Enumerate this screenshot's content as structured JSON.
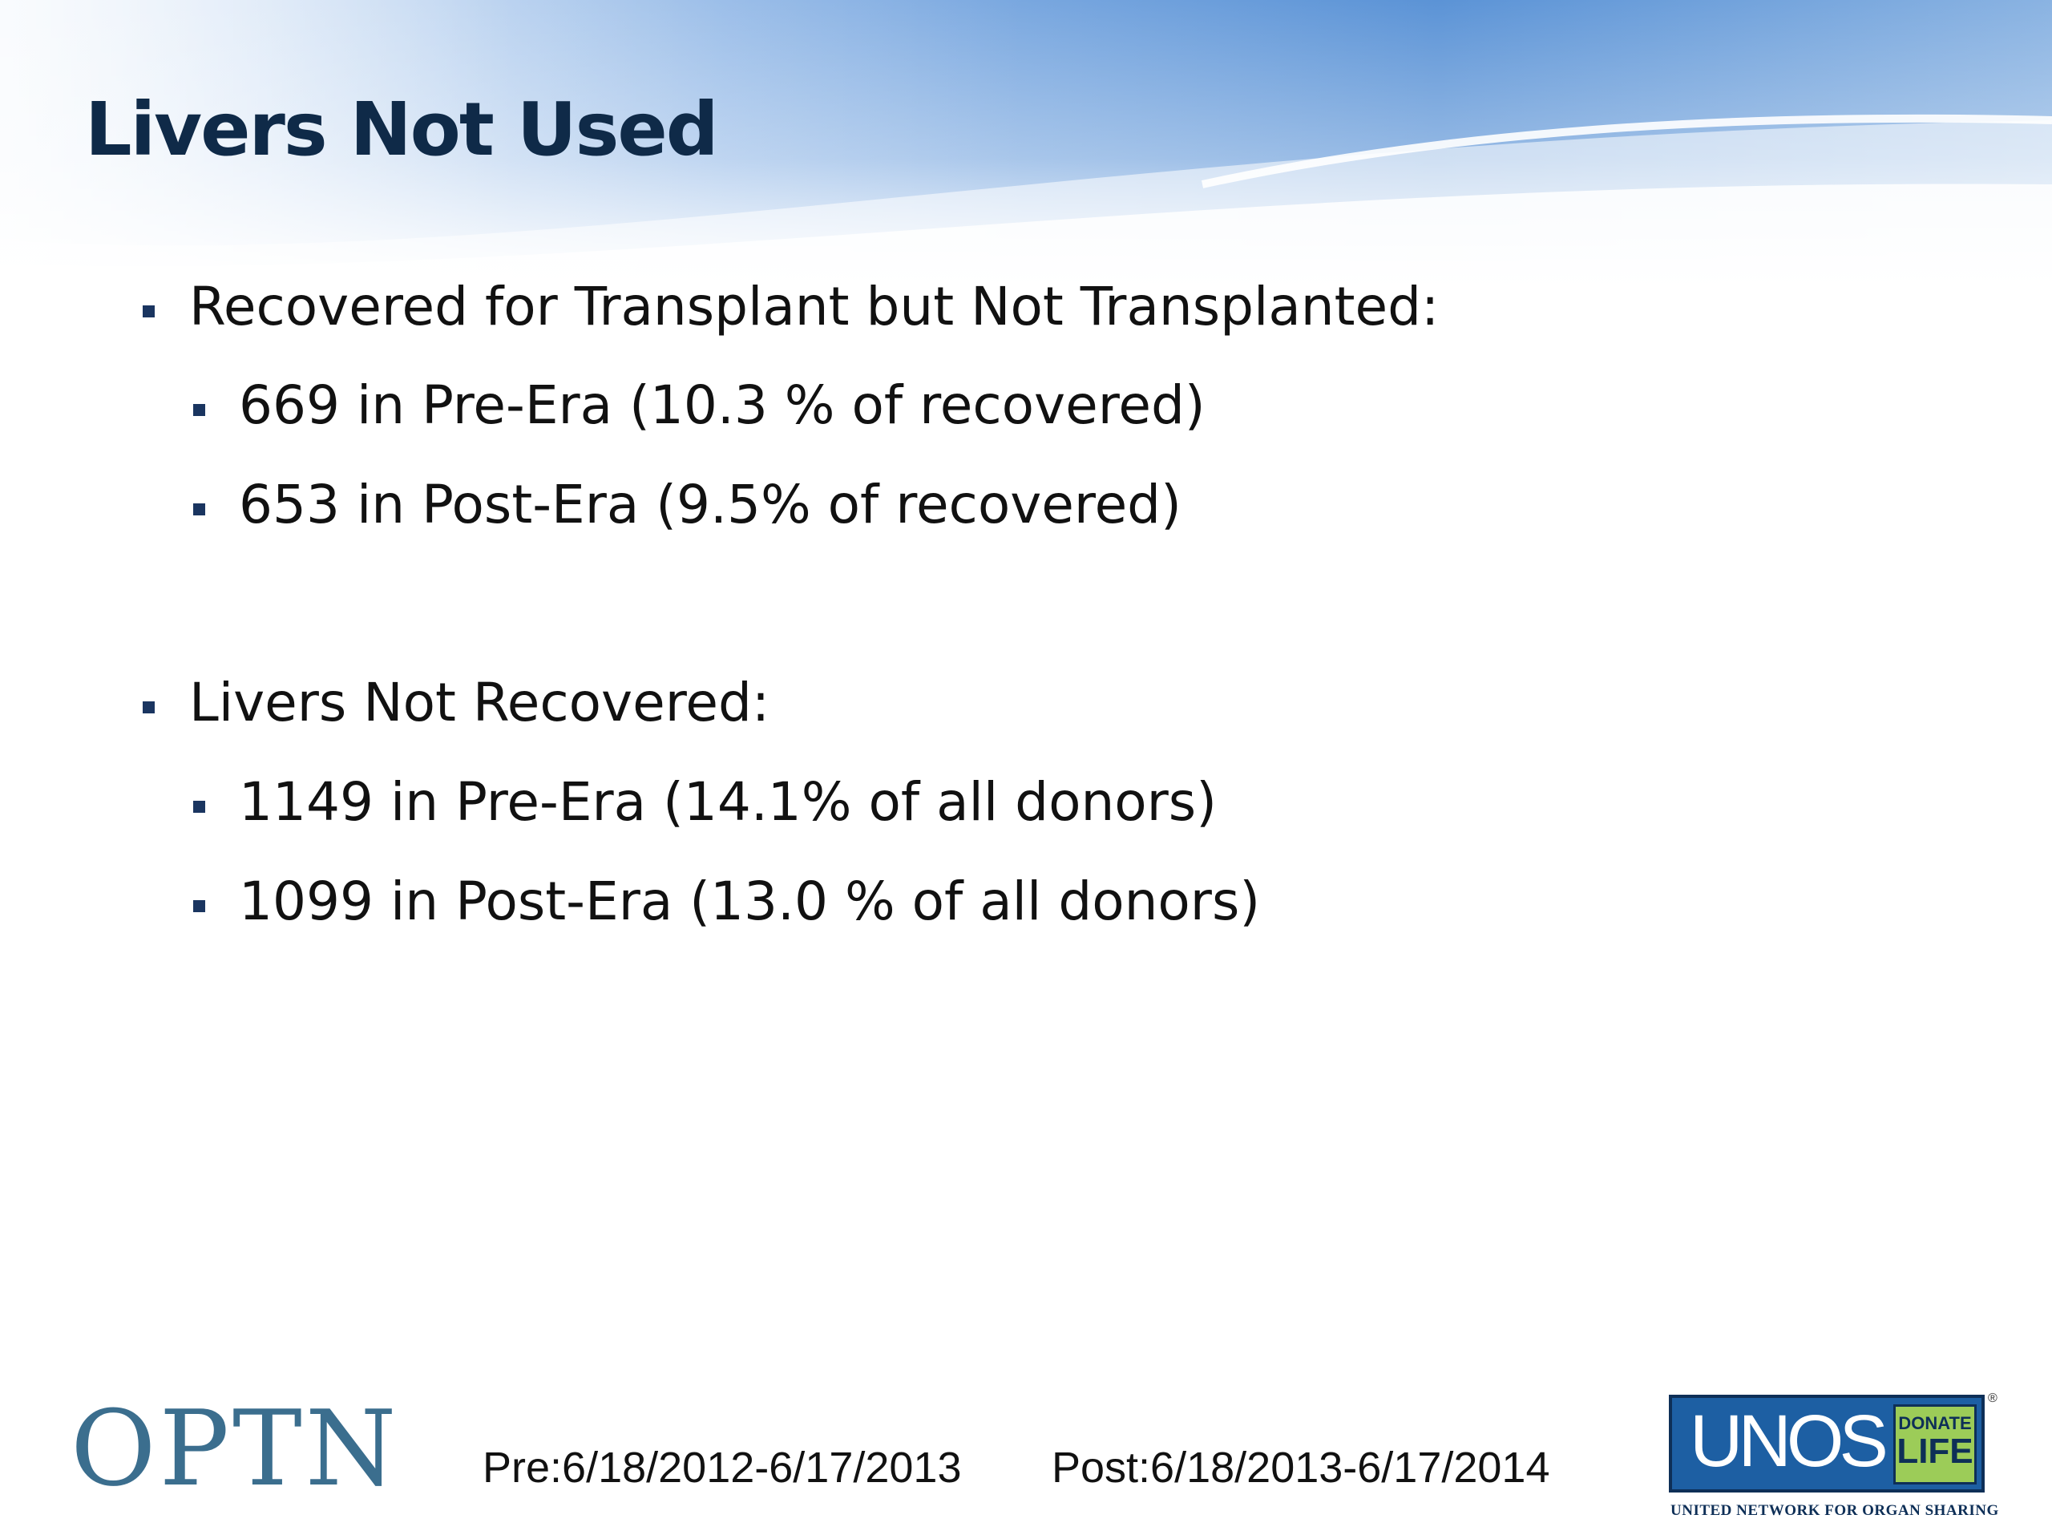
{
  "slide": {
    "title": "Livers Not Used",
    "bullets": [
      {
        "text": "Recovered for Transplant but Not Transplanted:",
        "sub": [
          "669 in Pre-Era (10.3 % of recovered)",
          "653 in Post-Era (9.5% of recovered)"
        ]
      },
      {
        "text": "Livers Not Recovered:",
        "sub": [
          "1149 in Pre-Era (14.1% of all donors)",
          "1099 in Post-Era (13.0 % of all donors)"
        ]
      }
    ]
  },
  "footer": {
    "optn_logo": "OPTN",
    "pre_dates": "Pre:6/18/2012-6/17/2013",
    "post_dates": "Post:6/18/2013-6/17/2014",
    "unos_logo": {
      "name": "UNOS",
      "donate": "DONATE",
      "life": "LIFE",
      "caption": "UNITED NETWORK FOR ORGAN SHARING"
    }
  },
  "colors": {
    "title": "#0f2a48",
    "header_blue": "#5b93d6",
    "bullet_marker": "#1a3560",
    "optn": "#3b6e8e",
    "unos_blue": "#1d5fa3",
    "donate_green": "#9ccc58"
  }
}
